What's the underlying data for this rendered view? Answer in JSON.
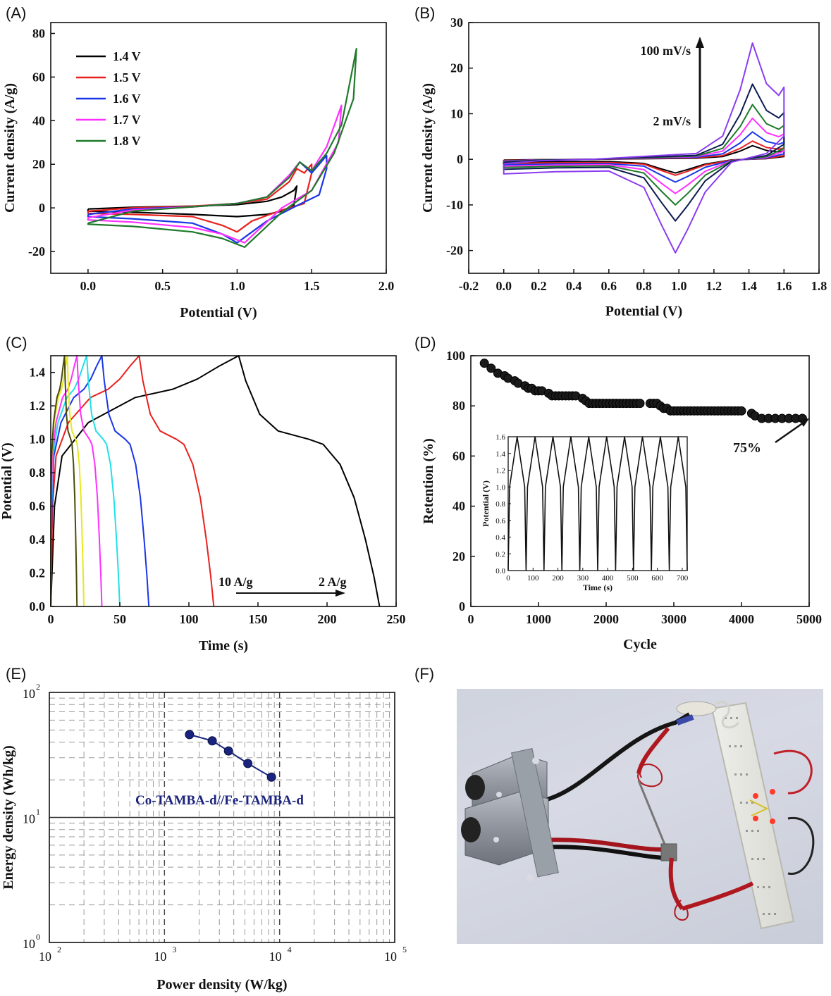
{
  "panels": {
    "A": {
      "label": "(A)"
    },
    "B": {
      "label": "(B)"
    },
    "C": {
      "label": "(C)"
    },
    "D": {
      "label": "(D)"
    },
    "E": {
      "label": "(E)"
    },
    "F": {
      "label": "(F)"
    }
  },
  "chart_data": [
    {
      "id": "A",
      "type": "line",
      "xlabel": "Potential (V)",
      "ylabel": "Current density (A/g)",
      "xlim": [
        -0.25,
        2.0
      ],
      "ylim": [
        -30,
        85
      ],
      "xticks": [
        "0.0",
        "0.5",
        "1.0",
        "1.5",
        "2.0"
      ],
      "xtick_values": [
        0,
        0.5,
        1.0,
        1.5,
        2.0
      ],
      "yticks": [
        "-20",
        "0",
        "20",
        "40",
        "60",
        "80"
      ],
      "ytick_values": [
        -20,
        0,
        20,
        40,
        60,
        80
      ],
      "legend_position": "top-left",
      "series": [
        {
          "name": "1.4 V",
          "color": "#000000",
          "x": [
            0,
            0.3,
            0.7,
            1.0,
            1.2,
            1.3,
            1.38,
            1.4,
            1.38,
            1.3,
            1.2,
            1.0,
            0.7,
            0.3,
            0,
            0
          ],
          "y": [
            -0.5,
            0.3,
            0.8,
            1.5,
            3,
            5,
            8,
            10,
            1,
            -1.5,
            -3,
            -4,
            -3,
            -2,
            -1.5,
            -0.5
          ]
        },
        {
          "name": "1.5 V",
          "color": "#e8211e",
          "x": [
            0,
            0.3,
            0.7,
            1.0,
            1.2,
            1.35,
            1.4,
            1.45,
            1.5,
            1.5,
            1.45,
            1.3,
            1.1,
            1.0,
            0.9,
            0.7,
            0.3,
            0,
            0
          ],
          "y": [
            -1.5,
            0,
            0.8,
            2,
            4,
            12,
            18,
            16,
            20,
            16,
            2,
            -1,
            -6,
            -11,
            -8,
            -4,
            -3,
            -2.5,
            -1.5
          ]
        },
        {
          "name": "1.6 V",
          "color": "#1a36e6",
          "x": [
            0,
            0.3,
            0.7,
            1.0,
            1.2,
            1.35,
            1.42,
            1.5,
            1.6,
            1.6,
            1.55,
            1.4,
            1.2,
            1.0,
            0.9,
            0.7,
            0.3,
            0,
            0
          ],
          "y": [
            -3,
            -0.5,
            0.5,
            2,
            5,
            15,
            21,
            16,
            24,
            18,
            6,
            1,
            -6,
            -16,
            -12,
            -7,
            -5,
            -4,
            -3
          ]
        },
        {
          "name": "1.7 V",
          "color": "#ff30ff",
          "x": [
            0,
            0.3,
            0.7,
            1.0,
            1.2,
            1.35,
            1.42,
            1.5,
            1.6,
            1.7,
            1.68,
            1.5,
            1.3,
            1.05,
            0.9,
            0.7,
            0.3,
            0,
            0
          ],
          "y": [
            -4.5,
            -1,
            0.5,
            2,
            5,
            15,
            21,
            17,
            28,
            47,
            30,
            8,
            0,
            -16,
            -12,
            -9,
            -6.5,
            -5.5,
            -4.5
          ]
        },
        {
          "name": "1.8 V",
          "color": "#1e7a2a",
          "x": [
            0,
            0.3,
            0.7,
            1.0,
            1.2,
            1.35,
            1.42,
            1.5,
            1.6,
            1.7,
            1.8,
            1.78,
            1.65,
            1.5,
            1.3,
            1.05,
            0.9,
            0.7,
            0.3,
            0,
            0
          ],
          "y": [
            -7,
            -1.5,
            0.5,
            2,
            5,
            14,
            21,
            17,
            25,
            38,
            73,
            50,
            25,
            8,
            -2,
            -18,
            -14,
            -11,
            -8.5,
            -7.5,
            -7
          ]
        }
      ]
    },
    {
      "id": "B",
      "type": "line",
      "xlabel": "Potential (V)",
      "ylabel": "Current density (A/g)",
      "xlim": [
        -0.2,
        1.8
      ],
      "ylim": [
        -25,
        30
      ],
      "xticks": [
        "-0.2",
        "0.0",
        "0.2",
        "0.4",
        "0.6",
        "0.8",
        "1.0",
        "1.2",
        "1.4",
        "1.6",
        "1.8"
      ],
      "xtick_values": [
        -0.2,
        0,
        0.2,
        0.4,
        0.6,
        0.8,
        1.0,
        1.2,
        1.4,
        1.6,
        1.8
      ],
      "yticks": [
        "-20",
        "-10",
        "0",
        "10",
        "20",
        "30"
      ],
      "ytick_values": [
        -20,
        -10,
        0,
        10,
        20,
        30
      ],
      "annotations": {
        "top": "100 mV/s",
        "bottom": "2 mV/s"
      },
      "series": [
        {
          "color": "#000000",
          "peak": 3,
          "trough": -3,
          "base": 0.6
        },
        {
          "color": "#e8211e",
          "peak": 4,
          "trough": -3.5,
          "base": 0.9
        },
        {
          "color": "#1a36e6",
          "peak": 6,
          "trough": -5,
          "base": 1.2
        },
        {
          "color": "#ff30ff",
          "peak": 9,
          "trough": -7.5,
          "base": 1.5
        },
        {
          "color": "#1e7a2a",
          "peak": 12,
          "trough": -10,
          "base": 1.8
        },
        {
          "color": "#0b1a4e",
          "peak": 16.5,
          "trough": -13.5,
          "base": 2.2
        },
        {
          "color": "#8a3cf0",
          "peak": 25.5,
          "trough": -20.5,
          "base": 3.2
        }
      ]
    },
    {
      "id": "C",
      "type": "line",
      "xlabel": "Time (s)",
      "ylabel": "Potential (V)",
      "xlim": [
        0,
        250
      ],
      "ylim": [
        0,
        1.5
      ],
      "xticks": [
        "0",
        "50",
        "100",
        "150",
        "200",
        "250"
      ],
      "xtick_values": [
        0,
        50,
        100,
        150,
        200,
        250
      ],
      "yticks": [
        "0.0",
        "0.2",
        "0.4",
        "0.6",
        "0.8",
        "1.0",
        "1.2",
        "1.4"
      ],
      "ytick_values": [
        0,
        0.2,
        0.4,
        0.6,
        0.8,
        1.0,
        1.2,
        1.4
      ],
      "annotations": {
        "left": "10 A/g",
        "right": "2 A/g"
      },
      "series": [
        {
          "color": "#000000",
          "tc": 136,
          "td": 238
        },
        {
          "color": "#e8211e",
          "tc": 64,
          "td": 118
        },
        {
          "color": "#1a36e6",
          "tc": 37,
          "td": 71
        },
        {
          "color": "#20e0e8",
          "tc": 26,
          "td": 50
        },
        {
          "color": "#ff30ff",
          "tc": 19,
          "td": 37
        },
        {
          "color": "#e8e81e",
          "tc": 12,
          "td": 24
        },
        {
          "color": "#4a4a0a",
          "tc": 10,
          "td": 19
        }
      ]
    },
    {
      "id": "D",
      "type": "scatter",
      "xlabel": "Cycle",
      "ylabel": "Retention (%)",
      "xlim": [
        0,
        5000
      ],
      "ylim": [
        0,
        100
      ],
      "xticks": [
        "0",
        "1000",
        "2000",
        "3000",
        "4000",
        "5000"
      ],
      "xtick_values": [
        0,
        1000,
        2000,
        3000,
        4000,
        5000
      ],
      "yticks": [
        "0",
        "20",
        "40",
        "60",
        "80",
        "100"
      ],
      "ytick_values": [
        0,
        20,
        40,
        60,
        80,
        100
      ],
      "annotation": "75%",
      "x": [
        200,
        300,
        400,
        500,
        550,
        650,
        700,
        800,
        850,
        900,
        950,
        1000,
        1050,
        1150,
        1200,
        1250,
        1300,
        1350,
        1400,
        1450,
        1500,
        1550,
        1650,
        1700,
        1750,
        1800,
        1850,
        1900,
        1950,
        2000,
        2050,
        2100,
        2150,
        2200,
        2250,
        2300,
        2350,
        2400,
        2450,
        2500,
        2650,
        2700,
        2750,
        2800,
        2850,
        2900,
        2950,
        3000,
        3050,
        3100,
        3150,
        3200,
        3250,
        3300,
        3350,
        3400,
        3450,
        3500,
        3550,
        3600,
        3650,
        3700,
        3750,
        3800,
        3850,
        3900,
        3950,
        4000,
        4150,
        4200,
        4300,
        4400,
        4500,
        4600,
        4700,
        4800,
        4900
      ],
      "y": [
        97,
        95,
        93,
        92,
        91,
        90,
        89,
        88,
        87,
        87,
        86,
        86,
        86,
        85,
        84,
        84,
        84,
        84,
        84,
        84,
        84,
        84,
        83,
        82,
        81,
        81,
        81,
        81,
        81,
        81,
        81,
        81,
        81,
        81,
        81,
        81,
        81,
        81,
        81,
        81,
        81,
        81,
        81,
        80,
        79,
        79,
        78,
        78,
        78,
        78,
        78,
        78,
        78,
        78,
        78,
        78,
        78,
        78,
        78,
        78,
        78,
        78,
        78,
        78,
        78,
        78,
        78,
        78,
        77,
        76,
        75,
        75,
        75,
        75,
        75,
        75,
        75
      ],
      "inset": {
        "xlabel": "Time (s)",
        "ylabel": "Potential (V)",
        "xlim": [
          0,
          720
        ],
        "ylim": [
          0,
          1.6
        ],
        "xticks": [
          "0",
          "100",
          "200",
          "300",
          "400",
          "500",
          "600",
          "700"
        ],
        "xtick_values": [
          0,
          100,
          200,
          300,
          400,
          500,
          600,
          700
        ],
        "yticks": [
          "0.0",
          "0.2",
          "0.4",
          "0.6",
          "0.8",
          "1.0",
          "1.2",
          "1.4",
          "1.6"
        ],
        "ytick_values": [
          0,
          0.2,
          0.4,
          0.6,
          0.8,
          1.0,
          1.2,
          1.4,
          1.6
        ],
        "period": 72
      }
    },
    {
      "id": "E",
      "type": "line",
      "scale": "log-log",
      "xlabel": "Power density (W/kg)",
      "ylabel": "Energy density (Wh/kg)",
      "xlim": [
        100,
        100000
      ],
      "ylim": [
        1,
        100
      ],
      "xticks": [
        "10",
        "10",
        "10",
        "10"
      ],
      "xtick_exponents": [
        "2",
        "3",
        "4",
        "5"
      ],
      "xtick_values": [
        100,
        1000,
        10000,
        100000
      ],
      "yticks": [
        "10",
        "10",
        "10"
      ],
      "ytick_exponents": [
        "0",
        "1",
        "2"
      ],
      "ytick_values": [
        1,
        10,
        100
      ],
      "grid": true,
      "series": [
        {
          "name": "Co-TAMBA-d//Fe-TAMBA-d",
          "color": "#1a237e",
          "x": [
            1650,
            2600,
            3600,
            5300,
            8500
          ],
          "y": [
            46,
            41,
            34,
            27,
            21
          ]
        }
      ]
    }
  ]
}
